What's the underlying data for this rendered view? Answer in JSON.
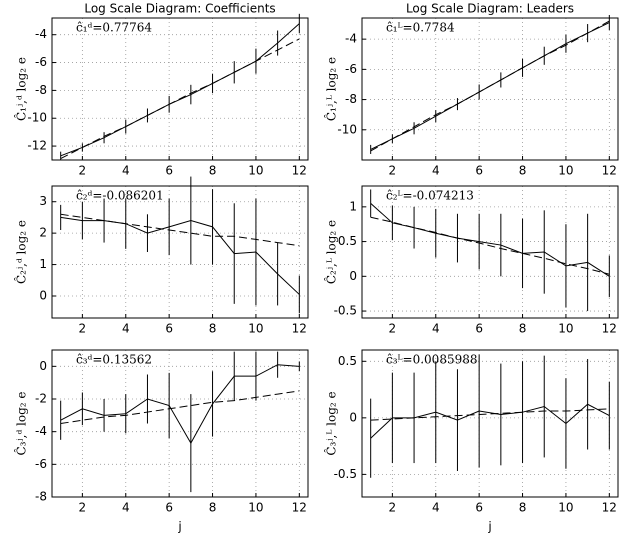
{
  "chart_data": [
    {
      "type": "line",
      "title": "Log Scale Diagram: Coefficients",
      "ylabel": "Ĉ₁ʲ,ᵈ log₂ e",
      "annotation": "ĉ₁ᵈ=0.77764",
      "x": [
        1,
        2,
        3,
        4,
        5,
        6,
        7,
        8,
        9,
        10,
        11,
        12
      ],
      "xlim": [
        0.6,
        12.4
      ],
      "xticks": [
        2,
        4,
        6,
        8,
        10,
        12
      ],
      "ylim": [
        -13,
        -2.8
      ],
      "yticks": [
        -12,
        -10,
        -8,
        -6,
        -4
      ],
      "grid": true,
      "series": [
        {
          "color": "#000000",
          "values": [
            -12.7,
            -12.1,
            -11.4,
            -10.6,
            -9.8,
            -9.0,
            -8.3,
            -7.5,
            -6.7,
            -5.9,
            -4.6,
            -3.2
          ],
          "errors": [
            0.3,
            0.3,
            0.4,
            0.5,
            0.5,
            0.6,
            0.7,
            0.7,
            0.8,
            0.9,
            0.9,
            0.7
          ]
        },
        {
          "color": "#000000",
          "dashed": true,
          "values": [
            -12.9,
            -12.1,
            -11.3,
            -10.6,
            -9.8,
            -9.0,
            -8.2,
            -7.5,
            -6.7,
            -5.9,
            -5.1,
            -4.3
          ]
        }
      ]
    },
    {
      "type": "line",
      "title": "Log Scale Diagram: Leaders",
      "ylabel": "Ĉ₁ʲ,ᴸ log₂ e",
      "annotation": "ĉ₁ᴸ=0.7784",
      "x": [
        1,
        2,
        3,
        4,
        5,
        6,
        7,
        8,
        9,
        10,
        11,
        12
      ],
      "xlim": [
        0.6,
        12.4
      ],
      "xticks": [
        2,
        4,
        6,
        8,
        10,
        12
      ],
      "ylim": [
        -12,
        -2.6
      ],
      "yticks": [
        -10,
        -8,
        -6,
        -4
      ],
      "grid": true,
      "series": [
        {
          "color": "#000000",
          "values": [
            -11.3,
            -10.6,
            -9.9,
            -9.1,
            -8.3,
            -7.5,
            -6.7,
            -5.9,
            -5.1,
            -4.3,
            -3.6,
            -2.9
          ],
          "errors": [
            0.3,
            0.3,
            0.4,
            0.4,
            0.4,
            0.5,
            0.5,
            0.6,
            0.6,
            0.6,
            0.6,
            0.5
          ]
        },
        {
          "color": "#000000",
          "dashed": true,
          "values": [
            -11.4,
            -10.6,
            -9.8,
            -9.0,
            -8.3,
            -7.5,
            -6.7,
            -5.9,
            -5.1,
            -4.4,
            -3.6,
            -2.8
          ]
        }
      ]
    },
    {
      "type": "line",
      "ylabel": "Ĉ₂ʲ,ᵈ log₂ e",
      "annotation": "ĉ₂ᵈ=-0.086201",
      "x": [
        1,
        2,
        3,
        4,
        5,
        6,
        7,
        8,
        9,
        10,
        11,
        12
      ],
      "xlim": [
        0.6,
        12.4
      ],
      "xticks": [
        2,
        4,
        6,
        8,
        10,
        12
      ],
      "ylim": [
        -0.7,
        3.5
      ],
      "yticks": [
        0,
        1,
        2,
        3
      ],
      "grid": true,
      "series": [
        {
          "color": "#000000",
          "values": [
            2.5,
            2.4,
            2.4,
            2.3,
            2.0,
            2.2,
            2.4,
            2.2,
            1.35,
            1.4,
            0.7,
            0.05
          ],
          "errors": [
            0.4,
            0.6,
            0.7,
            0.8,
            0.6,
            0.9,
            1.4,
            1.2,
            1.6,
            1.7,
            1.0,
            0.6
          ]
        },
        {
          "color": "#000000",
          "dashed": true,
          "values": [
            2.6,
            2.5,
            2.4,
            2.3,
            2.2,
            2.1,
            2.0,
            1.9,
            1.9,
            1.8,
            1.7,
            1.6
          ]
        }
      ]
    },
    {
      "type": "line",
      "ylabel": "Ĉ₂ʲ,ᴸ log₂ e",
      "annotation": "ĉ₂ᴸ=-0.074213",
      "x": [
        1,
        2,
        3,
        4,
        5,
        6,
        7,
        8,
        9,
        10,
        11,
        12
      ],
      "xlim": [
        0.6,
        12.4
      ],
      "xticks": [
        2,
        4,
        6,
        8,
        10,
        12
      ],
      "ylim": [
        -0.6,
        1.3
      ],
      "yticks": [
        -0.5,
        0,
        0.5,
        1
      ],
      "grid": true,
      "series": [
        {
          "color": "#000000",
          "values": [
            1.05,
            0.77,
            0.7,
            0.62,
            0.55,
            0.5,
            0.45,
            0.33,
            0.35,
            0.15,
            0.2,
            0.0
          ],
          "errors": [
            0.2,
            0.25,
            0.3,
            0.35,
            0.35,
            0.4,
            0.45,
            0.5,
            0.6,
            0.6,
            0.7,
            0.3
          ]
        },
        {
          "color": "#000000",
          "dashed": true,
          "values": [
            0.85,
            0.78,
            0.7,
            0.63,
            0.55,
            0.48,
            0.4,
            0.33,
            0.26,
            0.18,
            0.11,
            0.03
          ]
        }
      ]
    },
    {
      "type": "line",
      "ylabel": "Ĉ₃ʲ,ᵈ log₂ e",
      "annotation": "ĉ₃ᵈ=0.13562",
      "xlabel": "j",
      "x": [
        1,
        2,
        3,
        4,
        5,
        6,
        7,
        8,
        9,
        10,
        11,
        12
      ],
      "xlim": [
        0.6,
        12.4
      ],
      "xticks": [
        2,
        4,
        6,
        8,
        10,
        12
      ],
      "ylim": [
        -8,
        1
      ],
      "yticks": [
        0,
        -2,
        -4,
        -6,
        -8
      ],
      "grid": true,
      "series": [
        {
          "color": "#000000",
          "values": [
            -3.3,
            -2.6,
            -3.0,
            -2.9,
            -2.0,
            -2.4,
            -4.7,
            -2.3,
            -0.6,
            -0.6,
            0.1,
            0.0
          ],
          "errors": [
            1.2,
            1.0,
            1.0,
            1.2,
            1.5,
            2.0,
            3.0,
            2.0,
            1.5,
            1.5,
            0.8,
            0.3
          ]
        },
        {
          "color": "#000000",
          "dashed": true,
          "values": [
            -3.5,
            -3.3,
            -3.1,
            -3.0,
            -2.8,
            -2.6,
            -2.4,
            -2.2,
            -2.1,
            -1.9,
            -1.7,
            -1.5
          ]
        }
      ]
    },
    {
      "type": "line",
      "ylabel": "Ĉ₃ʲ,ᴸ log₂ e",
      "annotation": "ĉ₃ᴸ=0.0085988",
      "xlabel": "j",
      "x": [
        1,
        2,
        3,
        4,
        5,
        6,
        7,
        8,
        9,
        10,
        11,
        12
      ],
      "xlim": [
        0.6,
        12.4
      ],
      "xticks": [
        2,
        4,
        6,
        8,
        10,
        12
      ],
      "ylim": [
        -0.7,
        0.6
      ],
      "yticks": [
        -0.5,
        0,
        0.5
      ],
      "grid": true,
      "series": [
        {
          "color": "#000000",
          "values": [
            -0.18,
            0.0,
            0.0,
            0.05,
            -0.02,
            0.06,
            0.03,
            0.05,
            0.1,
            -0.05,
            0.12,
            0.02
          ],
          "errors": [
            0.35,
            0.4,
            0.4,
            0.45,
            0.45,
            0.5,
            0.45,
            0.45,
            0.45,
            0.4,
            0.4,
            0.3
          ]
        },
        {
          "color": "#000000",
          "dashed": true,
          "values": [
            -0.02,
            -0.01,
            0.0,
            0.01,
            0.02,
            0.03,
            0.04,
            0.05,
            0.06,
            0.06,
            0.07,
            0.08
          ]
        }
      ]
    }
  ]
}
